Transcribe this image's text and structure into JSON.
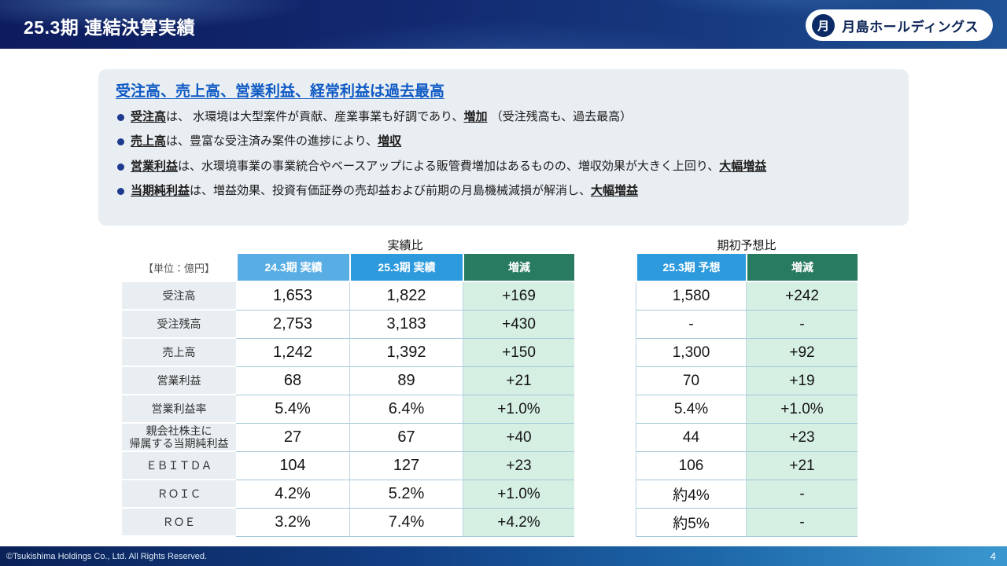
{
  "header": {
    "title": "25.3期 連結決算実績",
    "logo_mark": "月",
    "logo_text": "月島ホールディングス"
  },
  "summary": {
    "heading": "受注高、売上高、営業利益、経常利益は過去最高",
    "bullets": [
      {
        "lead": "受注高",
        "mid": "は、 水環境は大型案件が貢献、産業事業も好調であり、",
        "em": "増加",
        "tail": " （受注残高も、過去最高）"
      },
      {
        "lead": "売上高",
        "mid": "は、豊富な受注済み案件の進捗により、",
        "em": "増収",
        "tail": ""
      },
      {
        "lead": "営業利益",
        "mid": "は、水環境事業の事業統合やベースアップによる販管費増加はあるものの、増収効果が大きく上回り、",
        "em": "大幅増益",
        "tail": ""
      },
      {
        "lead": "当期純利益",
        "mid": "は、増益効果、投資有価証券の売却益および前期の月島機械減損が解消し、",
        "em": "大幅増益",
        "tail": ""
      }
    ]
  },
  "table": {
    "unit_label": "【単位：億円】",
    "group_headers": {
      "actual_vs": "実績比",
      "forecast_vs": "期初予想比"
    },
    "columns": [
      "24.3期 実績",
      "25.3期 実績",
      "増減",
      "25.3期 予想",
      "増減"
    ],
    "rows": [
      {
        "label": "受注高",
        "actual_24": "1,653",
        "actual_25": "1,822",
        "change_vs_actual": "+169",
        "forecast_25": "1,580",
        "change_vs_forecast": "+242"
      },
      {
        "label": "受注残高",
        "actual_24": "2,753",
        "actual_25": "3,183",
        "change_vs_actual": "+430",
        "forecast_25": "-",
        "change_vs_forecast": "-"
      },
      {
        "label": "売上高",
        "actual_24": "1,242",
        "actual_25": "1,392",
        "change_vs_actual": "+150",
        "forecast_25": "1,300",
        "change_vs_forecast": "+92"
      },
      {
        "label": "営業利益",
        "actual_24": "68",
        "actual_25": "89",
        "change_vs_actual": "+21",
        "forecast_25": "70",
        "change_vs_forecast": "+19"
      },
      {
        "label": "営業利益率",
        "actual_24": "5.4%",
        "actual_25": "6.4%",
        "change_vs_actual": "+1.0%",
        "forecast_25": "5.4%",
        "change_vs_forecast": "+1.0%"
      },
      {
        "label": "親会社株主に\n帰属する当期純利益",
        "actual_24": "27",
        "actual_25": "67",
        "change_vs_actual": "+40",
        "forecast_25": "44",
        "change_vs_forecast": "+23"
      },
      {
        "label": "ＥＢＩＴＤＡ",
        "actual_24": "104",
        "actual_25": "127",
        "change_vs_actual": "+23",
        "forecast_25": "106",
        "change_vs_forecast": "+21"
      },
      {
        "label": "ＲＯＩＣ",
        "actual_24": "4.2%",
        "actual_25": "5.2%",
        "change_vs_actual": "+1.0%",
        "forecast_25": "約4%",
        "change_vs_forecast": "-"
      },
      {
        "label": "ＲＯＥ",
        "actual_24": "3.2%",
        "actual_25": "7.4%",
        "change_vs_actual": "+4.2%",
        "forecast_25": "約5%",
        "change_vs_forecast": "-"
      }
    ]
  },
  "footer": {
    "copyright": "©Tsukishima Holdings Co., Ltd. All Rights Reserved.",
    "page_number": "4"
  },
  "colors": {
    "header_navy": "#12286f",
    "accent_blue_light": "#58ade4",
    "accent_blue": "#2d9ade",
    "accent_green": "#287a60",
    "mint_bg": "#d6efe3",
    "label_bg": "#e8eef1",
    "heading_blue": "#0f5ac4"
  }
}
